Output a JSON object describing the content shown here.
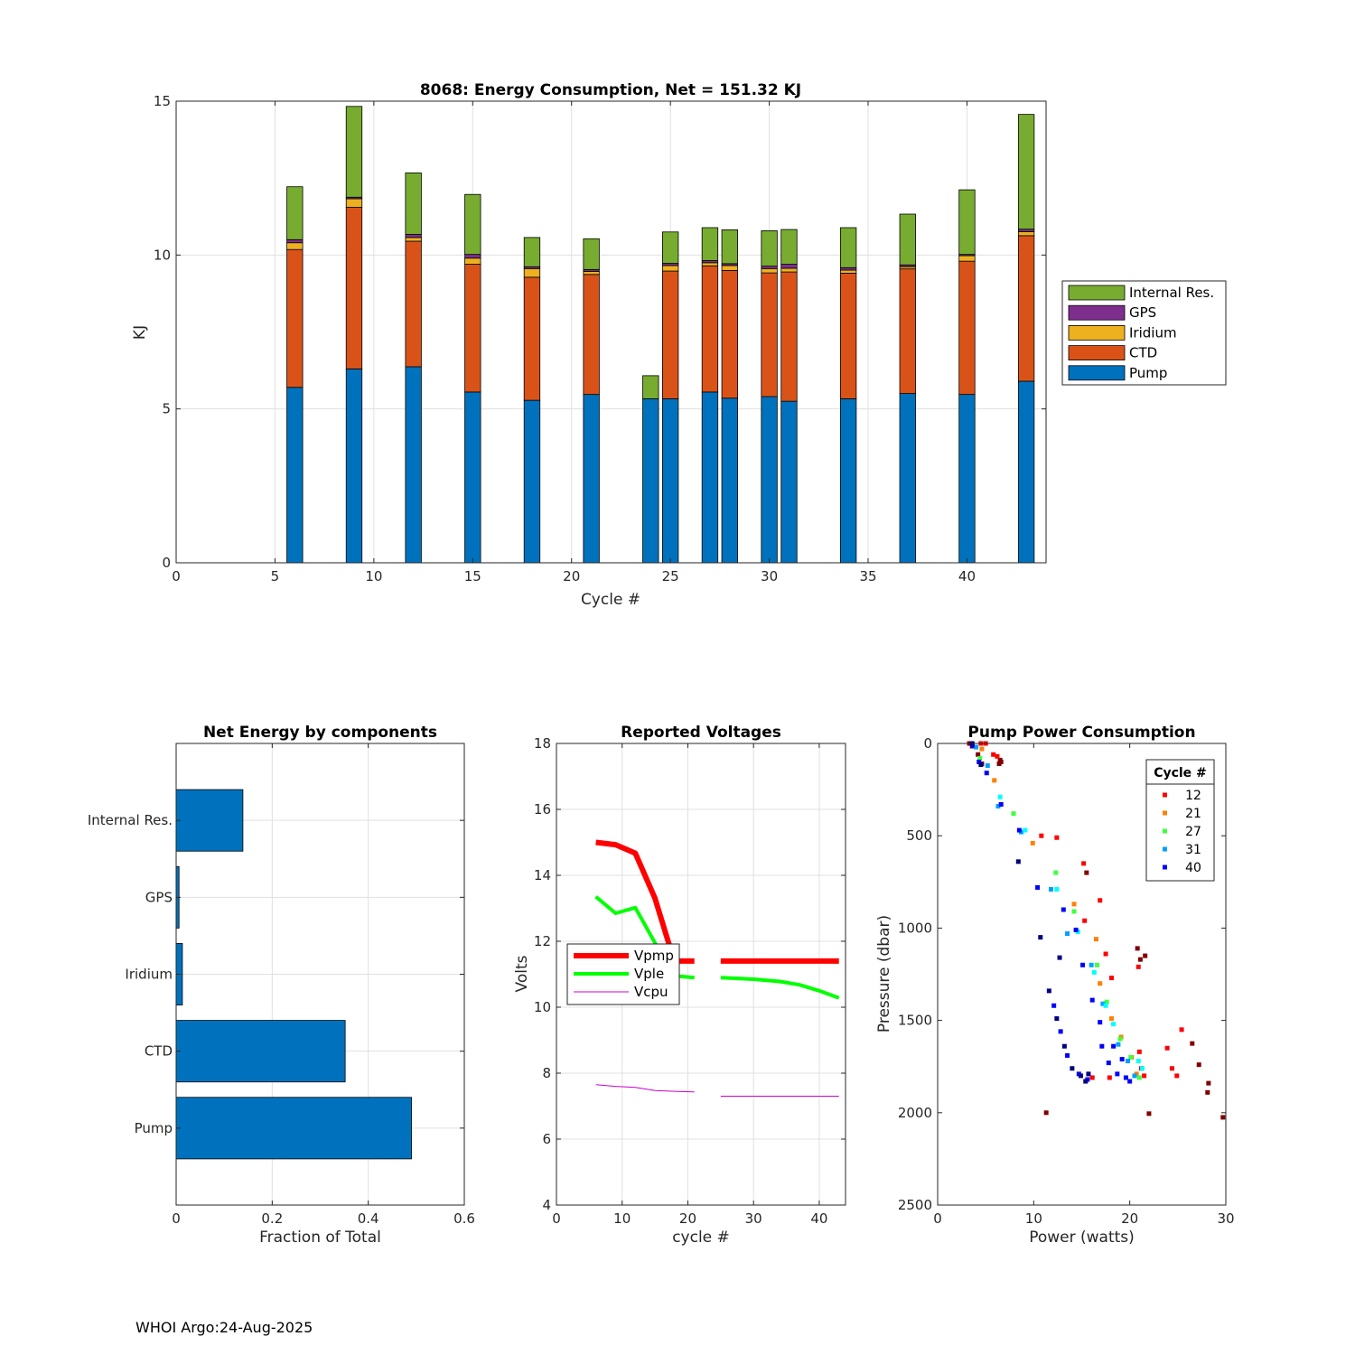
{
  "footer": "WHOI Argo:24-Aug-2025",
  "chart_data": [
    {
      "type": "bar",
      "stacked": true,
      "title": "8068: Energy Consumption,  Net = 151.32 KJ",
      "xlabel": "Cycle #",
      "ylabel": "KJ",
      "xlim": [
        0,
        44
      ],
      "ylim": [
        0,
        15
      ],
      "xticks": [
        0,
        5,
        10,
        15,
        20,
        25,
        30,
        35,
        40
      ],
      "yticks": [
        0,
        5,
        10,
        15
      ],
      "grid": true,
      "legend": "right",
      "categories": [
        6,
        9,
        12,
        15,
        18,
        21,
        24,
        25,
        27,
        28,
        30,
        31,
        34,
        37,
        40,
        43
      ],
      "series": [
        {
          "name": "Pump",
          "color": "#0072BD",
          "values": [
            5.7,
            6.3,
            6.37,
            5.55,
            5.28,
            5.47,
            5.33,
            5.33,
            5.55,
            5.35,
            5.4,
            5.25,
            5.33,
            5.5,
            5.47,
            5.9
          ]
        },
        {
          "name": "CTD",
          "color": "#D95319",
          "values": [
            4.48,
            5.25,
            4.08,
            4.15,
            4.0,
            3.9,
            0,
            4.15,
            4.1,
            4.15,
            4.02,
            4.2,
            4.08,
            4.05,
            4.33,
            4.73
          ]
        },
        {
          "name": "Iridium",
          "color": "#EDB120",
          "values": [
            0.22,
            0.28,
            0.12,
            0.2,
            0.28,
            0.1,
            0,
            0.18,
            0.1,
            0.16,
            0.14,
            0.12,
            0.1,
            0.07,
            0.18,
            0.13
          ]
        },
        {
          "name": "GPS",
          "color": "#7E2F8E",
          "values": [
            0.1,
            0.05,
            0.1,
            0.12,
            0.06,
            0.06,
            0,
            0.07,
            0.07,
            0.06,
            0.08,
            0.13,
            0.08,
            0.06,
            0.04,
            0.08
          ]
        },
        {
          "name": "Internal Res.",
          "color": "#77AC30",
          "values": [
            1.72,
            2.95,
            2.0,
            1.95,
            0.95,
            1.0,
            0.75,
            1.02,
            1.07,
            1.1,
            1.15,
            1.13,
            1.3,
            1.65,
            2.1,
            3.73
          ]
        }
      ]
    },
    {
      "type": "bar",
      "orientation": "horizontal",
      "title": "Net Energy by components",
      "xlabel": "Fraction of Total",
      "ylabel": "",
      "xlim": [
        0,
        0.6
      ],
      "xticks": [
        0,
        0.2,
        0.4,
        0.6
      ],
      "xtick_labels": [
        "0",
        "0.2",
        "0.4",
        "0.6"
      ],
      "grid": true,
      "color": "#0072BD",
      "categories": [
        "Pump",
        "CTD",
        "Iridium",
        "GPS",
        "Internal Res."
      ],
      "values": [
        0.49,
        0.352,
        0.013,
        0.006,
        0.139
      ]
    },
    {
      "type": "line",
      "title": "Reported Voltages",
      "xlabel": "cycle #",
      "ylabel": "Volts",
      "xlim": [
        0,
        44
      ],
      "ylim": [
        4,
        18
      ],
      "xticks": [
        0,
        10,
        20,
        30,
        40
      ],
      "yticks": [
        4,
        6,
        8,
        10,
        12,
        14,
        16,
        18
      ],
      "grid": true,
      "legend": "left",
      "series": [
        {
          "name": "Vpmp",
          "color": "#FF0000",
          "width": 6,
          "segments": [
            [
              [
                6,
                15.0
              ],
              [
                9,
                14.93
              ],
              [
                12,
                14.67
              ],
              [
                15,
                13.3
              ],
              [
                17,
                12.0
              ],
              [
                18,
                11.4
              ],
              [
                21,
                11.4
              ]
            ],
            [
              [
                25,
                11.4
              ],
              [
                43,
                11.4
              ]
            ]
          ]
        },
        {
          "name": "Vple",
          "color": "#00FF00",
          "width": 4,
          "segments": [
            [
              [
                6,
                13.35
              ],
              [
                9,
                12.85
              ],
              [
                12,
                13.02
              ],
              [
                15,
                11.95
              ],
              [
                18,
                10.95
              ],
              [
                21,
                10.9
              ]
            ],
            [
              [
                25,
                10.9
              ],
              [
                30,
                10.85
              ],
              [
                34,
                10.78
              ],
              [
                37,
                10.68
              ],
              [
                40,
                10.5
              ],
              [
                43,
                10.28
              ]
            ]
          ]
        },
        {
          "name": "Vcpu",
          "color": "#CC00CC",
          "width": 1,
          "segments": [
            [
              [
                6,
                7.65
              ],
              [
                9,
                7.6
              ],
              [
                12,
                7.57
              ],
              [
                15,
                7.47
              ],
              [
                18,
                7.45
              ],
              [
                21,
                7.43
              ]
            ],
            [
              [
                25,
                7.3
              ],
              [
                43,
                7.3
              ]
            ]
          ]
        }
      ]
    },
    {
      "type": "scatter",
      "title": "Pump Power Consumption",
      "xlabel": "Power (watts)",
      "ylabel": "Pressure (dbar)",
      "xlim": [
        0,
        30
      ],
      "ylim": [
        0,
        2500
      ],
      "y_reversed": true,
      "xticks": [
        0,
        10,
        20,
        30
      ],
      "yticks": [
        0,
        500,
        1000,
        1500,
        2000,
        2500
      ],
      "grid": false,
      "legend_title": "Cycle #",
      "legend": "top-right",
      "series": [
        {
          "name": "6",
          "color": "#800000",
          "in_legend": false,
          "points": [
            [
              3.3,
              0
            ],
            [
              3.6,
              15
            ],
            [
              4.2,
              60
            ],
            [
              4.6,
              110
            ],
            [
              6.5,
              90
            ],
            [
              6.6,
              100
            ],
            [
              6.4,
              110
            ],
            [
              11.3,
              2000
            ],
            [
              15.5,
              700
            ],
            [
              20.8,
              1110
            ],
            [
              21.1,
              1170
            ],
            [
              21.6,
              1150
            ],
            [
              26.5,
              1625
            ],
            [
              27.2,
              1740
            ],
            [
              28.2,
              1840
            ],
            [
              28.1,
              1890
            ],
            [
              29.7,
              2025
            ],
            [
              22,
              2005
            ]
          ]
        },
        {
          "name": "12",
          "color": "#FF0000",
          "in_legend": true,
          "points": [
            [
              4.5,
              0
            ],
            [
              5,
              0
            ],
            [
              5.8,
              60
            ],
            [
              6.2,
              70
            ],
            [
              10.8,
              500
            ],
            [
              12.4,
              510
            ],
            [
              15.2,
              650
            ],
            [
              16.9,
              850
            ],
            [
              15.3,
              960
            ],
            [
              17.5,
              1140
            ],
            [
              18.1,
              1270
            ],
            [
              20.9,
              1210
            ],
            [
              21,
              1670
            ],
            [
              21.2,
              1760
            ],
            [
              21.5,
              1800
            ],
            [
              23.9,
              1650
            ],
            [
              24.4,
              1760
            ],
            [
              25.4,
              1550
            ],
            [
              24.9,
              1800
            ],
            [
              16.1,
              1810
            ],
            [
              17.9,
              1810
            ]
          ]
        },
        {
          "name": "21",
          "color": "#FF8000",
          "in_legend": true,
          "points": [
            [
              4.6,
              30
            ],
            [
              5.9,
              200
            ],
            [
              9.9,
              540
            ],
            [
              14.2,
              870
            ],
            [
              16.5,
              1060
            ],
            [
              16.9,
              1300
            ],
            [
              18.1,
              1490
            ],
            [
              19.1,
              1590
            ],
            [
              20.2,
              1700
            ],
            [
              20.7,
              1790
            ]
          ]
        },
        {
          "name": "27",
          "color": "#40FF40",
          "in_legend": true,
          "points": [
            [
              4.4,
              80
            ],
            [
              7.9,
              380
            ],
            [
              12.3,
              700
            ],
            [
              14.2,
              910
            ],
            [
              16.6,
              1200
            ],
            [
              17.6,
              1400
            ],
            [
              19,
              1600
            ],
            [
              20.1,
              1700
            ],
            [
              21,
              1810
            ]
          ]
        },
        {
          "name": "31",
          "color": "#00A0FF",
          "in_legend": true,
          "points": [
            [
              4,
              20
            ],
            [
              5.2,
              120
            ],
            [
              6.3,
              340
            ],
            [
              8.7,
              480
            ],
            [
              11.8,
              790
            ],
            [
              13.5,
              1030
            ],
            [
              16,
              1200
            ],
            [
              17.2,
              1410
            ],
            [
              18.8,
              1630
            ],
            [
              19.8,
              1720
            ],
            [
              20.5,
              1800
            ]
          ]
        },
        {
          "name": "cyan",
          "color": "#00FFFF",
          "in_legend": false,
          "points": [
            [
              6.5,
              290
            ],
            [
              9.1,
              470
            ],
            [
              12.4,
              790
            ],
            [
              14.6,
              1020
            ],
            [
              16.3,
              1240
            ],
            [
              17.5,
              1420
            ],
            [
              18.3,
              1520
            ],
            [
              20.9,
              1720
            ],
            [
              21.3,
              1760
            ]
          ]
        },
        {
          "name": "40",
          "color": "#0000FF",
          "in_legend": true,
          "points": [
            [
              3.6,
              10
            ],
            [
              4.3,
              100
            ],
            [
              5.1,
              160
            ],
            [
              6.6,
              330
            ],
            [
              8.5,
              470
            ],
            [
              10.4,
              780
            ],
            [
              13.1,
              900
            ],
            [
              14.4,
              1010
            ],
            [
              15.1,
              1200
            ],
            [
              16.1,
              1390
            ],
            [
              16.9,
              1510
            ],
            [
              18.3,
              1640
            ],
            [
              19.2,
              1710
            ],
            [
              19.6,
              1810
            ],
            [
              20,
              1830
            ],
            [
              12.1,
              1420
            ],
            [
              12.8,
              1560
            ],
            [
              13.5,
              1690
            ],
            [
              14.7,
              1790
            ],
            [
              15.6,
              1820
            ],
            [
              17.1,
              1640
            ],
            [
              17.8,
              1730
            ],
            [
              18.7,
              1790
            ]
          ]
        },
        {
          "name": "navy",
          "color": "#000080",
          "in_legend": false,
          "points": [
            [
              3.6,
              0
            ],
            [
              4.5,
              115
            ],
            [
              8.4,
              640
            ],
            [
              10.7,
              1050
            ],
            [
              12.7,
              1160
            ],
            [
              11.6,
              1340
            ],
            [
              12.4,
              1490
            ],
            [
              13.2,
              1640
            ],
            [
              14,
              1760
            ],
            [
              14.9,
              1800
            ],
            [
              15.7,
              1790
            ],
            [
              15.4,
              1830
            ]
          ]
        }
      ]
    }
  ]
}
